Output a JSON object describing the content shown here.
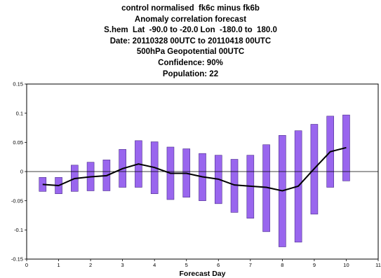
{
  "header": {
    "title_lines": [
      "control normalised  fk6c minus fk6b",
      "Anomaly correlation forecast",
      "S.hem  Lat  -90.0 to -20.0 Lon  -180.0 to  180.0",
      "Date: 20110328 00UTC to 20110418 00UTC",
      "500hPa Geopotential 00UTC",
      "Confidence: 90%",
      "Population: 22"
    ]
  },
  "chart_data": {
    "type": "line",
    "title": "control normalised  fk6c minus fk6b",
    "xlabel": "Forecast Day",
    "ylabel": "",
    "xlim": [
      0,
      11
    ],
    "ylim": [
      -0.15,
      0.15
    ],
    "x_ticks": [
      0,
      1,
      2,
      3,
      4,
      5,
      6,
      7,
      8,
      9,
      10,
      11
    ],
    "x_tick_labels": [
      "0",
      "1",
      "2",
      "3",
      "4",
      "5",
      "6",
      "7",
      "8",
      "9",
      "10",
      "11"
    ],
    "y_ticks": [
      -0.15,
      -0.1,
      -0.05,
      0,
      0.05,
      0.1,
      0.15
    ],
    "y_tick_labels": [
      "-0.15",
      "-0.1",
      "-0.05",
      "0",
      "0.05",
      "0.1",
      "0.15"
    ],
    "zero_line": true,
    "grid": false,
    "legend": "none",
    "x": [
      0.5,
      1,
      1.5,
      2,
      2.5,
      3,
      3.5,
      4,
      4.5,
      5,
      5.5,
      6,
      6.5,
      7,
      7.5,
      8,
      8.5,
      9,
      9.5,
      10
    ],
    "series": [
      {
        "kind": "line",
        "color": "#000000",
        "values": [
          -0.022,
          -0.024,
          -0.012,
          -0.009,
          -0.007,
          0.005,
          0.013,
          0.007,
          -0.003,
          -0.003,
          -0.009,
          -0.013,
          -0.023,
          -0.025,
          -0.027,
          -0.033,
          -0.025,
          0.005,
          0.034,
          0.041
        ]
      },
      {
        "kind": "confidence-interval",
        "confidence": "90%",
        "color": "#9966ee",
        "edge_color": "#4a2d8a",
        "low": [
          -0.034,
          -0.038,
          -0.034,
          -0.033,
          -0.033,
          -0.027,
          -0.027,
          -0.038,
          -0.048,
          -0.044,
          -0.05,
          -0.055,
          -0.07,
          -0.08,
          -0.103,
          -0.129,
          -0.121,
          -0.073,
          -0.027,
          -0.016
        ],
        "high": [
          -0.01,
          -0.01,
          0.011,
          0.016,
          0.02,
          0.038,
          0.053,
          0.051,
          0.042,
          0.039,
          0.031,
          0.028,
          0.021,
          0.028,
          0.046,
          0.062,
          0.07,
          0.081,
          0.095,
          0.097
        ]
      }
    ]
  }
}
